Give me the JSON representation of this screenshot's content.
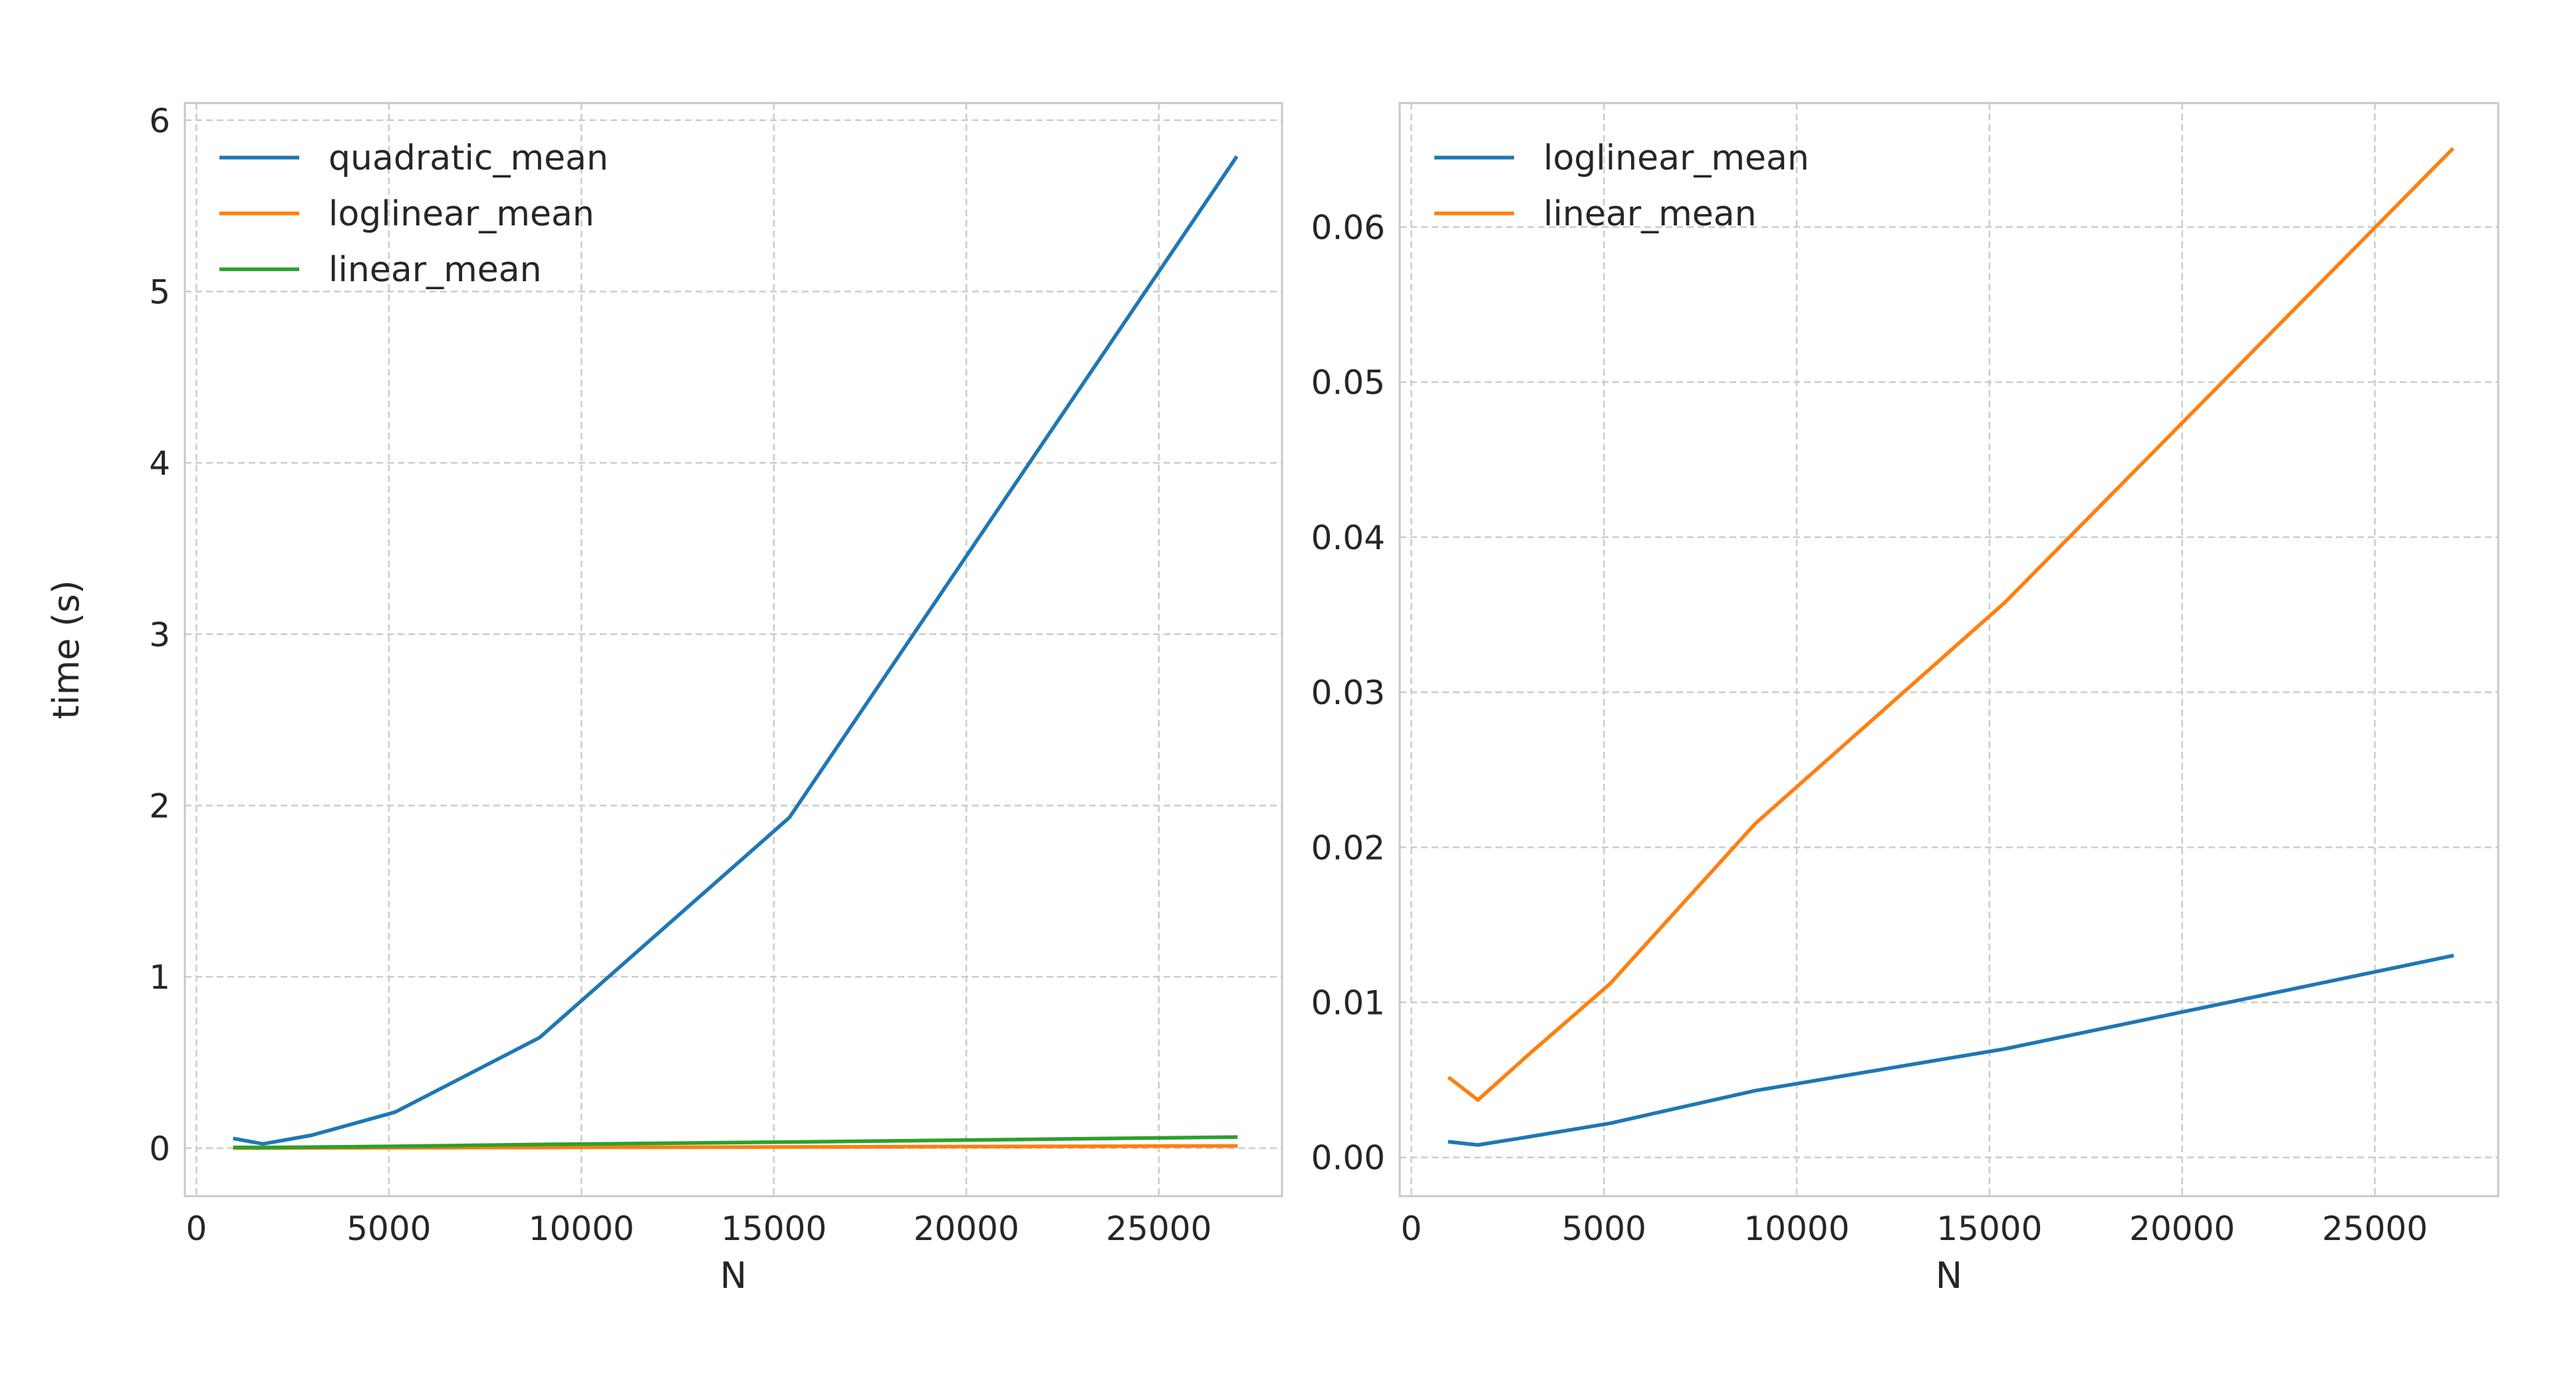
{
  "colors": {
    "tab_blue": "#1f77b4",
    "tab_orange": "#ff7f0e",
    "tab_green": "#2ca02c",
    "grid": "#cccccc",
    "spine": "#c8c8c8",
    "text": "#262626"
  },
  "chart_data": [
    {
      "type": "line",
      "title": "",
      "xlabel": "N",
      "ylabel": "time (s)",
      "xlim": [
        -300,
        28200
      ],
      "ylim": [
        -0.28,
        6.1
      ],
      "xticks": [
        0,
        5000,
        10000,
        15000,
        20000,
        25000
      ],
      "xtick_labels": [
        "0",
        "5000",
        "10000",
        "15000",
        "20000",
        "25000"
      ],
      "yticks": [
        0,
        1,
        2,
        3,
        4,
        5,
        6
      ],
      "ytick_labels": [
        "0",
        "1",
        "2",
        "3",
        "4",
        "5",
        "6"
      ],
      "grid": true,
      "grid_style": "dashed",
      "legend_position": "top-left",
      "series": [
        {
          "name": "quadratic_mean",
          "color": "#1f77b4",
          "x": [
            1000,
            1728,
            2985,
            5158,
            8914,
            15404,
            27000
          ],
          "y": [
            0.055,
            0.025,
            0.075,
            0.21,
            0.645,
            1.93,
            5.78
          ]
        },
        {
          "name": "loglinear_mean",
          "color": "#ff7f0e",
          "x": [
            1000,
            1728,
            2985,
            5158,
            8914,
            15404,
            27000
          ],
          "y": [
            0.001,
            0.0008,
            0.0013,
            0.0022,
            0.0043,
            0.007,
            0.013
          ]
        },
        {
          "name": "linear_mean",
          "color": "#2ca02c",
          "x": [
            1000,
            1728,
            2985,
            5158,
            8914,
            15404,
            27000
          ],
          "y": [
            0.005,
            0.0037,
            0.0065,
            0.011,
            0.022,
            0.036,
            0.065
          ]
        }
      ]
    },
    {
      "type": "line",
      "title": "",
      "xlabel": "N",
      "ylabel": "",
      "xlim": [
        -300,
        28200
      ],
      "ylim": [
        -0.0025,
        0.068
      ],
      "xticks": [
        0,
        5000,
        10000,
        15000,
        20000,
        25000
      ],
      "xtick_labels": [
        "0",
        "5000",
        "10000",
        "15000",
        "20000",
        "25000"
      ],
      "yticks": [
        0,
        0.01,
        0.02,
        0.03,
        0.04,
        0.05,
        0.06
      ],
      "ytick_labels": [
        "0.00",
        "0.01",
        "0.02",
        "0.03",
        "0.04",
        "0.05",
        "0.06"
      ],
      "grid": true,
      "grid_style": "dashed",
      "legend_position": "top-left",
      "series": [
        {
          "name": "loglinear_mean",
          "color": "#1f77b4",
          "x": [
            1000,
            1728,
            2985,
            5158,
            8914,
            15404,
            27000
          ],
          "y": [
            0.001,
            0.0008,
            0.0013,
            0.0022,
            0.0043,
            0.007,
            0.013
          ]
        },
        {
          "name": "linear_mean",
          "color": "#ff7f0e",
          "x": [
            1000,
            1728,
            2985,
            5158,
            8914,
            15404,
            27000
          ],
          "y": [
            0.0051,
            0.0037,
            0.0065,
            0.0112,
            0.0215,
            0.0358,
            0.065
          ]
        }
      ]
    }
  ]
}
